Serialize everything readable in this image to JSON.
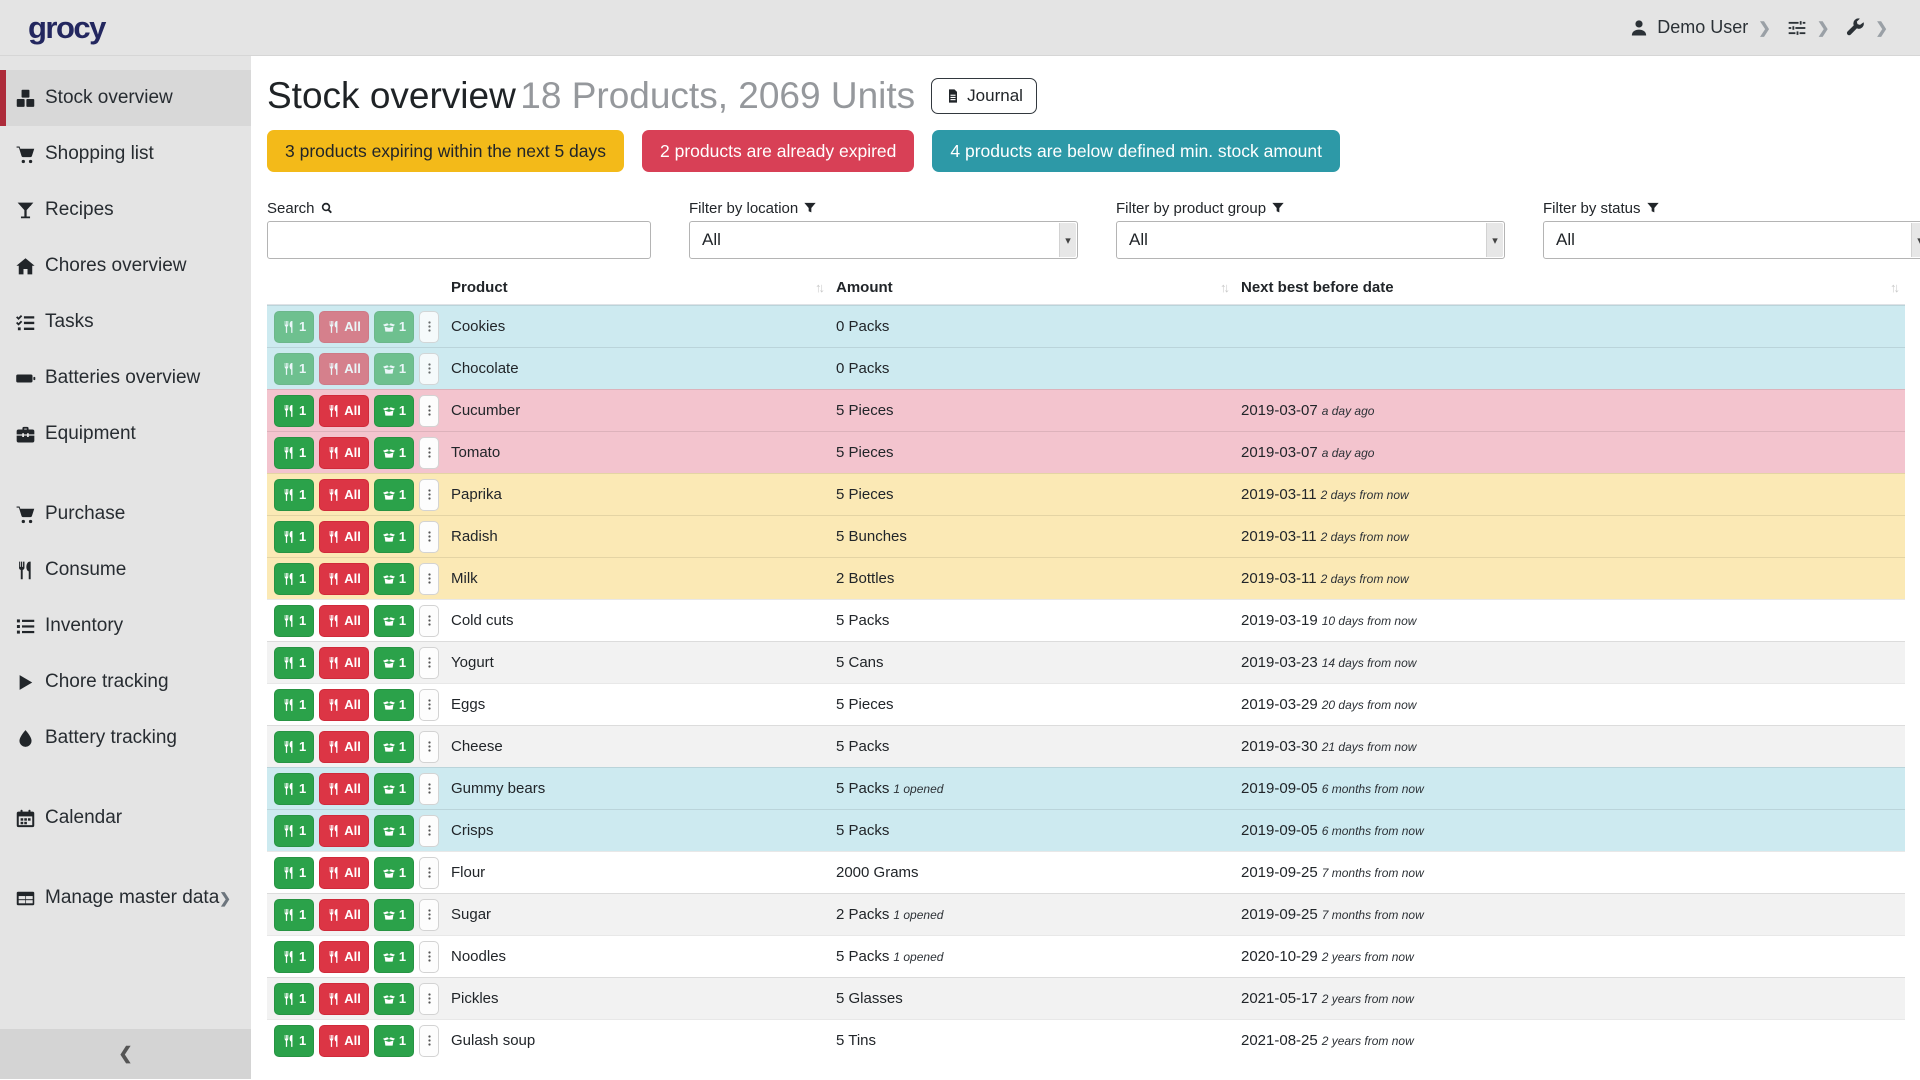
{
  "app": {
    "logo_text": "grocy"
  },
  "navbar": {
    "user_label": "Demo User",
    "user_icon": "user",
    "settings_icon": "sliders",
    "admin_icon": "wrench",
    "chevron": "❯"
  },
  "sidebar": {
    "collapse_icon": "❮",
    "items": [
      {
        "label": "Stock overview",
        "icon": "cubes",
        "active": true
      },
      {
        "label": "Shopping list",
        "icon": "cart"
      },
      {
        "label": "Recipes",
        "icon": "martini-glass"
      },
      {
        "label": "Chores overview",
        "icon": "home"
      },
      {
        "label": "Tasks",
        "icon": "tasks"
      },
      {
        "label": "Batteries overview",
        "icon": "battery"
      },
      {
        "label": "Equipment",
        "icon": "toolbox"
      },
      {
        "label": "Purchase",
        "icon": "cart",
        "gap_before": true
      },
      {
        "label": "Consume",
        "icon": "utensils"
      },
      {
        "label": "Inventory",
        "icon": "list"
      },
      {
        "label": "Chore tracking",
        "icon": "play"
      },
      {
        "label": "Battery tracking",
        "icon": "droplet"
      },
      {
        "label": "Calendar",
        "icon": "calendar",
        "gap_before": true
      },
      {
        "label": "Manage master data",
        "icon": "table",
        "gap_before": true,
        "chevron": true
      }
    ]
  },
  "page": {
    "title": "Stock overview",
    "subtitle": "18 Products, 2069 Units",
    "journal_button": "Journal"
  },
  "alerts": [
    {
      "text": "3 products expiring within the next 5 days",
      "bg": "#f3ba19",
      "fg": "#212529"
    },
    {
      "text": "2 products are already expired",
      "bg": "#d84056",
      "fg": "#ffffff"
    },
    {
      "text": "4 products are below defined min. stock amount",
      "bg": "#2d99a7",
      "fg": "#ffffff"
    }
  ],
  "filters": {
    "search_label": "Search",
    "search_value": "",
    "location_label": "Filter by location",
    "location_value": "All",
    "group_label": "Filter by product group",
    "group_value": "All",
    "status_label": "Filter by status",
    "status_value": "All"
  },
  "table": {
    "columns": [
      "Product",
      "Amount",
      "Next best before date"
    ],
    "buttons": {
      "consume_one": "1",
      "consume_all": "All",
      "open_one": "1"
    },
    "row_colors": {
      "info": "#cdeaf0",
      "danger": "#f3c4ce",
      "warning": "#fbe9b5",
      "stripe": "#f2f2f2"
    },
    "rows": [
      {
        "product": "Cookies",
        "amount": "0 Packs",
        "amount_extra": "",
        "date": "",
        "date_extra": "",
        "color": "info",
        "muted": true
      },
      {
        "product": "Chocolate",
        "amount": "0 Packs",
        "amount_extra": "",
        "date": "",
        "date_extra": "",
        "color": "info",
        "muted": true
      },
      {
        "product": "Cucumber",
        "amount": "5 Pieces",
        "amount_extra": "",
        "date": "2019-03-07",
        "date_extra": "a day ago",
        "color": "danger",
        "muted": false
      },
      {
        "product": "Tomato",
        "amount": "5 Pieces",
        "amount_extra": "",
        "date": "2019-03-07",
        "date_extra": "a day ago",
        "color": "danger",
        "muted": false
      },
      {
        "product": "Paprika",
        "amount": "5 Pieces",
        "amount_extra": "",
        "date": "2019-03-11",
        "date_extra": "2 days from now",
        "color": "warning",
        "muted": false
      },
      {
        "product": "Radish",
        "amount": "5 Bunches",
        "amount_extra": "",
        "date": "2019-03-11",
        "date_extra": "2 days from now",
        "color": "warning",
        "muted": false
      },
      {
        "product": "Milk",
        "amount": "2 Bottles",
        "amount_extra": "",
        "date": "2019-03-11",
        "date_extra": "2 days from now",
        "color": "warning",
        "muted": false
      },
      {
        "product": "Cold cuts",
        "amount": "5 Packs",
        "amount_extra": "",
        "date": "2019-03-19",
        "date_extra": "10 days from now",
        "color": "",
        "muted": false
      },
      {
        "product": "Yogurt",
        "amount": "5 Cans",
        "amount_extra": "",
        "date": "2019-03-23",
        "date_extra": "14 days from now",
        "color": "",
        "muted": false
      },
      {
        "product": "Eggs",
        "amount": "5 Pieces",
        "amount_extra": "",
        "date": "2019-03-29",
        "date_extra": "20 days from now",
        "color": "",
        "muted": false
      },
      {
        "product": "Cheese",
        "amount": "5 Packs",
        "amount_extra": "",
        "date": "2019-03-30",
        "date_extra": "21 days from now",
        "color": "",
        "muted": false
      },
      {
        "product": "Gummy bears",
        "amount": "5 Packs",
        "amount_extra": "1 opened",
        "date": "2019-09-05",
        "date_extra": "6 months from now",
        "color": "info",
        "muted": false
      },
      {
        "product": "Crisps",
        "amount": "5 Packs",
        "amount_extra": "",
        "date": "2019-09-05",
        "date_extra": "6 months from now",
        "color": "info",
        "muted": false
      },
      {
        "product": "Flour",
        "amount": "2000 Grams",
        "amount_extra": "",
        "date": "2019-09-25",
        "date_extra": "7 months from now",
        "color": "",
        "muted": false
      },
      {
        "product": "Sugar",
        "amount": "2 Packs",
        "amount_extra": "1 opened",
        "date": "2019-09-25",
        "date_extra": "7 months from now",
        "color": "",
        "muted": false
      },
      {
        "product": "Noodles",
        "amount": "5 Packs",
        "amount_extra": "1 opened",
        "date": "2020-10-29",
        "date_extra": "2 years from now",
        "color": "",
        "muted": false
      },
      {
        "product": "Pickles",
        "amount": "5 Glasses",
        "amount_extra": "",
        "date": "2021-05-17",
        "date_extra": "2 years from now",
        "color": "",
        "muted": false
      },
      {
        "product": "Gulash soup",
        "amount": "5 Tins",
        "amount_extra": "",
        "date": "2021-08-25",
        "date_extra": "2 years from now",
        "color": "",
        "muted": false
      }
    ]
  }
}
